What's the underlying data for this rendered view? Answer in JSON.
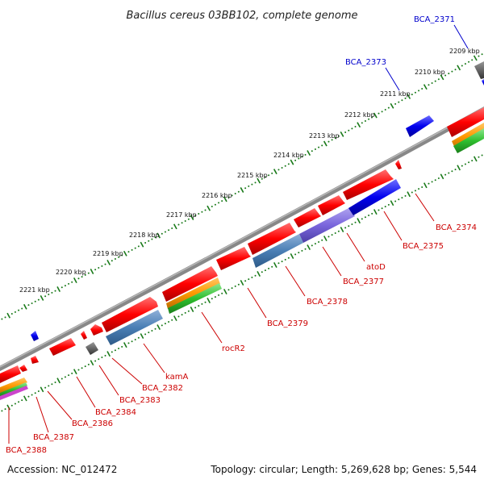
{
  "title": "Bacillus cereus 03BB102, complete genome",
  "footer": {
    "accession": "Accession: NC_012472",
    "summary": "Topology: circular; Length: 5,269,628 bp; Genes: 5,544"
  },
  "kbp_labels": [
    "2209 kbp",
    "2210 kbp",
    "2211 kbp",
    "2212 kbp",
    "2213 kbp",
    "2214 kbp",
    "2215 kbp",
    "2216 kbp",
    "2217 kbp",
    "2218 kbp",
    "2219 kbp",
    "2220 kbp",
    "2221 kbp"
  ],
  "forward_labels": [
    "BCA_2371",
    "BCA_2373"
  ],
  "reverse_labels": [
    "BCA_2374",
    "BCA_2375",
    "atoD",
    "BCA_2377",
    "BCA_2378",
    "BCA_2379",
    "rocR2",
    "kamA",
    "BCA_2382",
    "BCA_2383",
    "BCA_2384",
    "BCA_2386",
    "BCA_2387",
    "BCA_2388"
  ],
  "colors": {
    "forward_label": "#0000cc",
    "reverse_label": "#cc0000",
    "cds": "#ff0000",
    "forward_cds": "#0000ff",
    "backbone": "#888888",
    "ticks": "#1a7a1a",
    "cog_blue": "#4477aa",
    "cog_purple": "#7766cc",
    "cog_orange": "#ff9900",
    "cog_green": "#33bb33",
    "cog_grey": "#666666"
  }
}
